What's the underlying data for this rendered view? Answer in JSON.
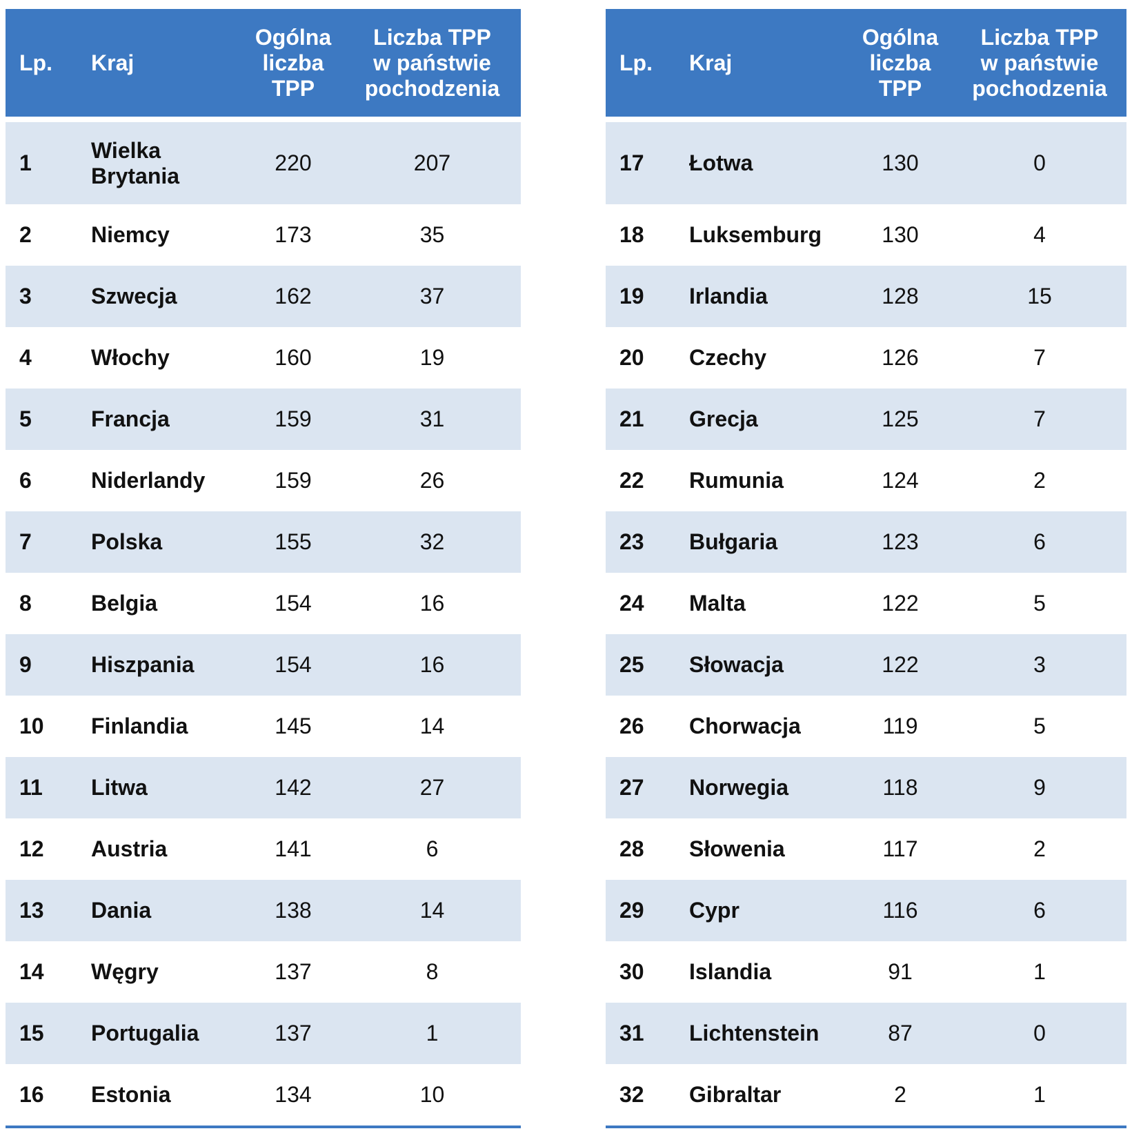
{
  "headers": {
    "lp": "Lp.",
    "kraj": "Kraj",
    "ogolna": "Ogólna\nliczba\nTPP",
    "liczba": "Liczba TPP\nw państwie\npochodzenia"
  },
  "left_rows": [
    {
      "lp": "1",
      "kraj": "Wielka Brytania",
      "ogolna": "220",
      "liczba": "207"
    },
    {
      "lp": "2",
      "kraj": "Niemcy",
      "ogolna": "173",
      "liczba": "35"
    },
    {
      "lp": "3",
      "kraj": "Szwecja",
      "ogolna": "162",
      "liczba": "37"
    },
    {
      "lp": "4",
      "kraj": "Włochy",
      "ogolna": "160",
      "liczba": "19"
    },
    {
      "lp": "5",
      "kraj": "Francja",
      "ogolna": "159",
      "liczba": "31"
    },
    {
      "lp": "6",
      "kraj": "Niderlandy",
      "ogolna": "159",
      "liczba": "26"
    },
    {
      "lp": "7",
      "kraj": "Polska",
      "ogolna": "155",
      "liczba": "32"
    },
    {
      "lp": "8",
      "kraj": "Belgia",
      "ogolna": "154",
      "liczba": "16"
    },
    {
      "lp": "9",
      "kraj": "Hiszpania",
      "ogolna": "154",
      "liczba": "16"
    },
    {
      "lp": "10",
      "kraj": "Finlandia",
      "ogolna": "145",
      "liczba": "14"
    },
    {
      "lp": "11",
      "kraj": "Litwa",
      "ogolna": "142",
      "liczba": "27"
    },
    {
      "lp": "12",
      "kraj": "Austria",
      "ogolna": "141",
      "liczba": "6"
    },
    {
      "lp": "13",
      "kraj": "Dania",
      "ogolna": "138",
      "liczba": "14"
    },
    {
      "lp": "14",
      "kraj": "Węgry",
      "ogolna": "137",
      "liczba": "8"
    },
    {
      "lp": "15",
      "kraj": "Portugalia",
      "ogolna": "137",
      "liczba": "1"
    },
    {
      "lp": "16",
      "kraj": "Estonia",
      "ogolna": "134",
      "liczba": "10"
    }
  ],
  "right_rows": [
    {
      "lp": "17",
      "kraj": "Łotwa",
      "ogolna": "130",
      "liczba": "0"
    },
    {
      "lp": "18",
      "kraj": "Luksemburg",
      "ogolna": "130",
      "liczba": "4"
    },
    {
      "lp": "19",
      "kraj": "Irlandia",
      "ogolna": "128",
      "liczba": "15"
    },
    {
      "lp": "20",
      "kraj": "Czechy",
      "ogolna": "126",
      "liczba": "7"
    },
    {
      "lp": "21",
      "kraj": "Grecja",
      "ogolna": "125",
      "liczba": "7"
    },
    {
      "lp": "22",
      "kraj": "Rumunia",
      "ogolna": "124",
      "liczba": "2"
    },
    {
      "lp": "23",
      "kraj": "Bułgaria",
      "ogolna": "123",
      "liczba": "6"
    },
    {
      "lp": "24",
      "kraj": "Malta",
      "ogolna": "122",
      "liczba": "5"
    },
    {
      "lp": "25",
      "kraj": "Słowacja",
      "ogolna": "122",
      "liczba": "3"
    },
    {
      "lp": "26",
      "kraj": "Chorwacja",
      "ogolna": "119",
      "liczba": "5"
    },
    {
      "lp": "27",
      "kraj": "Norwegia",
      "ogolna": "118",
      "liczba": "9"
    },
    {
      "lp": "28",
      "kraj": "Słowenia",
      "ogolna": "117",
      "liczba": "2"
    },
    {
      "lp": "29",
      "kraj": "Cypr",
      "ogolna": "116",
      "liczba": "6"
    },
    {
      "lp": "30",
      "kraj": "Islandia",
      "ogolna": "91",
      "liczba": "1"
    },
    {
      "lp": "31",
      "kraj": "Lichtenstein",
      "ogolna": "87",
      "liczba": "0"
    },
    {
      "lp": "32",
      "kraj": "Gibraltar",
      "ogolna": "2",
      "liczba": "1"
    }
  ]
}
